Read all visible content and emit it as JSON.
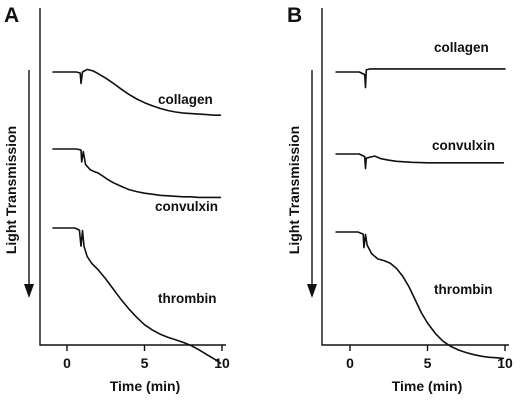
{
  "chart_data": [
    {
      "panel": "A",
      "type": "line",
      "ylabel": "Light Transmission",
      "xlabel": "Time (min)",
      "xticks": [
        0,
        5,
        10
      ],
      "xlim": [
        -1.5,
        10.2
      ],
      "series": [
        {
          "name": "collagen",
          "x": [
            -0.9,
            0.6,
            0.85,
            0.9,
            1.0,
            1.3,
            1.7,
            2.0,
            2.5,
            3.0,
            3.5,
            4.0,
            4.5,
            5.0,
            5.5,
            6.0,
            6.5,
            7.0,
            7.5,
            8.0,
            8.5,
            9.0,
            9.5,
            9.9
          ],
          "y": [
            0.0,
            0.0,
            0.02,
            0.22,
            0.0,
            -0.05,
            -0.02,
            0.03,
            0.12,
            0.22,
            0.33,
            0.43,
            0.52,
            0.59,
            0.65,
            0.7,
            0.74,
            0.77,
            0.79,
            0.8,
            0.81,
            0.82,
            0.83,
            0.83
          ]
        },
        {
          "name": "convulxin",
          "x": [
            -0.9,
            0.6,
            0.9,
            0.95,
            1.05,
            1.2,
            1.5,
            1.8,
            2.0,
            2.3,
            2.6,
            3.0,
            3.5,
            4.0,
            4.5,
            5.0,
            5.5,
            6.0,
            6.5,
            7.0,
            7.5,
            8.0,
            8.5,
            9.0,
            9.5,
            9.9
          ],
          "y": [
            0.0,
            0.0,
            0.02,
            0.25,
            0.05,
            0.3,
            0.4,
            0.44,
            0.46,
            0.52,
            0.58,
            0.65,
            0.72,
            0.78,
            0.82,
            0.85,
            0.87,
            0.89,
            0.9,
            0.91,
            0.92,
            0.92,
            0.93,
            0.93,
            0.93,
            0.93
          ]
        },
        {
          "name": "thrombin",
          "x": [
            -0.9,
            0.5,
            0.8,
            0.9,
            1.0,
            1.1,
            1.3,
            1.6,
            2.0,
            2.5,
            3.0,
            3.5,
            4.0,
            4.5,
            5.0,
            5.5,
            6.0,
            6.5,
            7.0,
            7.5,
            8.0,
            8.5,
            9.0,
            9.5,
            9.9
          ],
          "y": [
            0.0,
            0.0,
            0.04,
            0.35,
            0.05,
            0.35,
            0.55,
            0.68,
            0.8,
            0.98,
            1.18,
            1.38,
            1.56,
            1.72,
            1.86,
            1.96,
            2.04,
            2.1,
            2.15,
            2.2,
            2.26,
            2.34,
            2.43,
            2.52,
            2.6
          ]
        }
      ]
    },
    {
      "panel": "B",
      "type": "line",
      "ylabel": "Light Transmission",
      "xlabel": "Time (min)",
      "xticks": [
        0,
        5,
        10
      ],
      "xlim": [
        -1.5,
        10.2
      ],
      "series": [
        {
          "name": "collagen",
          "x": [
            -0.9,
            0.6,
            0.95,
            1.0,
            1.05,
            1.3,
            2.0,
            4.0,
            6.0,
            8.0,
            10.0
          ],
          "y": [
            0.0,
            0.0,
            0.05,
            0.3,
            -0.04,
            -0.06,
            -0.06,
            -0.06,
            -0.06,
            -0.06,
            -0.06
          ]
        },
        {
          "name": "convulxin",
          "x": [
            -0.9,
            0.6,
            0.95,
            1.0,
            1.05,
            1.3,
            1.6,
            2.0,
            2.5,
            3.0,
            3.5,
            4.0,
            5.0,
            6.0,
            8.0,
            9.9
          ],
          "y": [
            0.0,
            0.0,
            0.05,
            0.28,
            0.08,
            0.06,
            0.04,
            0.09,
            0.12,
            0.14,
            0.15,
            0.16,
            0.17,
            0.17,
            0.17,
            0.17
          ]
        },
        {
          "name": "thrombin",
          "x": [
            -0.9,
            0.5,
            0.85,
            0.9,
            1.0,
            1.1,
            1.4,
            1.8,
            2.2,
            2.6,
            3.0,
            3.4,
            3.8,
            4.2,
            4.6,
            5.0,
            5.5,
            6.0,
            6.5,
            7.0,
            7.5,
            8.0,
            8.5,
            9.0,
            9.5,
            9.9
          ],
          "y": [
            0.0,
            0.0,
            0.04,
            0.3,
            0.05,
            0.25,
            0.42,
            0.52,
            0.55,
            0.6,
            0.7,
            0.85,
            1.05,
            1.3,
            1.55,
            1.75,
            1.95,
            2.1,
            2.2,
            2.27,
            2.32,
            2.36,
            2.39,
            2.41,
            2.42,
            2.43
          ]
        }
      ]
    }
  ]
}
